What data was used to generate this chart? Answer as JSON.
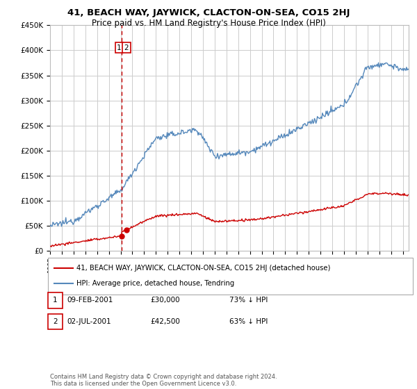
{
  "title": "41, BEACH WAY, JAYWICK, CLACTON-ON-SEA, CO15 2HJ",
  "subtitle": "Price paid vs. HM Land Registry's House Price Index (HPI)",
  "legend_label_red": "41, BEACH WAY, JAYWICK, CLACTON-ON-SEA, CO15 2HJ (detached house)",
  "legend_label_blue": "HPI: Average price, detached house, Tendring",
  "transaction1_date": "09-FEB-2001",
  "transaction1_price": 30000,
  "transaction1_pct": "73% ↓ HPI",
  "transaction2_date": "02-JUL-2001",
  "transaction2_price": 42500,
  "transaction2_pct": "63% ↓ HPI",
  "footer": "Contains HM Land Registry data © Crown copyright and database right 2024.\nThis data is licensed under the Open Government Licence v3.0.",
  "ylim": [
    0,
    450000
  ],
  "xlim_start": 1995.0,
  "xlim_end": 2025.5,
  "red_color": "#cc0000",
  "blue_color": "#5588bb",
  "vline_color": "#cc0000",
  "background_color": "#ffffff",
  "grid_color": "#cccccc",
  "t1_x": 2001.1,
  "t1_y": 30000,
  "t2_x": 2001.5,
  "t2_y": 42500
}
